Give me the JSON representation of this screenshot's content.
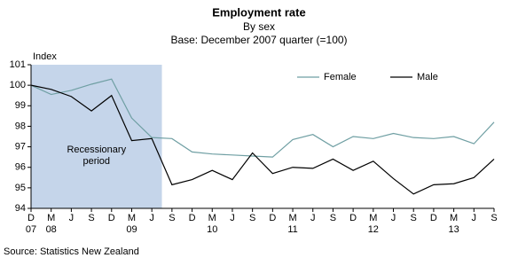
{
  "chart_data": {
    "type": "line",
    "title": "Employment rate",
    "subtitle": "By sex",
    "base_note": "Base: December 2007 quarter (=100)",
    "y_label": "Index",
    "source": "Source: Statistics New Zealand",
    "categories": [
      "D",
      "M",
      "J",
      "S",
      "D",
      "M",
      "J",
      "S",
      "D",
      "M",
      "J",
      "S",
      "D",
      "M",
      "J",
      "S",
      "D",
      "M",
      "J",
      "S",
      "D",
      "M",
      "J",
      "S"
    ],
    "year_labels": [
      "07",
      "08",
      null,
      null,
      null,
      "09",
      null,
      null,
      null,
      "10",
      null,
      null,
      null,
      "11",
      null,
      null,
      null,
      "12",
      null,
      null,
      null,
      "13",
      null,
      null
    ],
    "ylim": [
      94,
      101
    ],
    "yticks": [
      94,
      95,
      96,
      97,
      98,
      99,
      100,
      101
    ],
    "grid": false,
    "legend_position": "top-right",
    "shaded_region": {
      "label_lines": [
        "Recessionary",
        "period"
      ],
      "x_span": [
        0,
        6.5
      ],
      "color": "#c5d5ea"
    },
    "series": [
      {
        "name": "Female",
        "color": "#6f9fa3",
        "values": [
          100,
          99.55,
          99.75,
          100.05,
          100.3,
          98.4,
          97.45,
          97.4,
          96.75,
          96.65,
          96.6,
          96.55,
          96.5,
          97.35,
          97.6,
          97.0,
          97.5,
          97.4,
          97.65,
          97.45,
          97.4,
          97.5,
          97.15,
          98.2
        ]
      },
      {
        "name": "Male",
        "color": "#000000",
        "values": [
          100,
          99.8,
          99.45,
          98.75,
          99.5,
          97.3,
          97.4,
          95.15,
          95.4,
          95.85,
          95.4,
          96.7,
          95.7,
          96.0,
          95.95,
          96.4,
          95.85,
          96.3,
          95.45,
          94.7,
          95.15,
          95.2,
          95.5,
          96.4
        ]
      }
    ]
  }
}
